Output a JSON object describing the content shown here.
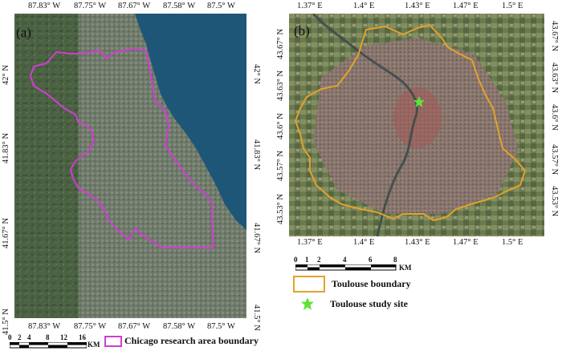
{
  "panel_a": {
    "tag": "(a)",
    "top_ticks": [
      "87.83° W",
      "87.75° W",
      "87.67° W",
      "87.58° W",
      "87.5° W"
    ],
    "bottom_ticks": [
      "87.83° W",
      "87.75° W",
      "87.67° W",
      "87.58° W",
      "87.5° W"
    ],
    "left_ticks": [
      "42° N",
      "41.83° N",
      "41.67° N",
      "41.5° N"
    ],
    "right_ticks": [
      "42° N",
      "41.83° N",
      "41.67° N",
      "41.5° N"
    ],
    "scale_numbers": [
      "0",
      "2",
      "4",
      "8",
      "12",
      "16"
    ],
    "scale_unit": "KM",
    "legend_label": "Chicago research area boundary",
    "boundary_color": "#d23bd6",
    "water_color": "#1e5677"
  },
  "panel_b": {
    "tag": "(b)",
    "top_ticks": [
      "1.37° E",
      "1.4° E",
      "1.43° E",
      "1.47° E",
      "1.5° E"
    ],
    "bottom_ticks": [
      "1.37° E",
      "1.4° E",
      "1.43° E",
      "1.47° E",
      "1.5° E"
    ],
    "left_ticks": [
      "43.67° N",
      "43.63° N",
      "43.6° N",
      "43.57° N",
      "43.53° N"
    ],
    "right_ticks": [
      "43.67° N",
      "43.63° N",
      "43.6° N",
      "43.57° N",
      "43.53° N"
    ],
    "scale_numbers": [
      "0",
      "1",
      "2",
      "4",
      "6",
      "8"
    ],
    "scale_unit": "KM",
    "legend_boundary": "Toulouse boundary",
    "legend_site": "Toulouse study site",
    "boundary_color": "#e3a22a",
    "site_color": "#5ee33a"
  }
}
